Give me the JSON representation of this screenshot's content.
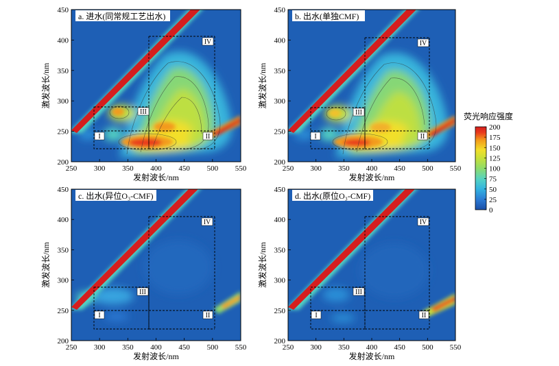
{
  "chart_data": [
    {
      "type": "heatmap",
      "panel_label": "a. 进水(同常规工艺出水)",
      "xlabel": "发射波长/nm",
      "ylabel": "激发波长/nm",
      "xlim": [
        250,
        550
      ],
      "ylim": [
        200,
        450
      ],
      "xticks": [
        "250",
        "300",
        "350",
        "400",
        "450",
        "500",
        "550"
      ],
      "yticks": [
        "200",
        "250",
        "300",
        "350",
        "400",
        "450"
      ],
      "regions": [
        "I",
        "II",
        "III",
        "IV"
      ],
      "scatter_line_intensity": 200,
      "peaks": [
        {
          "em": 345,
          "ex": 235,
          "intensity": 200
        },
        {
          "em": 330,
          "ex": 278,
          "intensity": 175
        },
        {
          "em": 410,
          "ex": 245,
          "intensity": 175
        },
        {
          "em": 425,
          "ex": 300,
          "intensity": 120
        },
        {
          "em": 430,
          "ex": 340,
          "intensity": 90
        },
        {
          "em": 525,
          "ex": 260,
          "intensity": 190
        }
      ]
    },
    {
      "type": "heatmap",
      "panel_label": "b. 出水(单独CMF)",
      "xlabel": "发射波长/nm",
      "ylabel": "激发波长/nm",
      "xlim": [
        250,
        550
      ],
      "ylim": [
        200,
        450
      ],
      "xticks": [
        "250",
        "300",
        "350",
        "400",
        "450",
        "500",
        "550"
      ],
      "yticks": [
        "200",
        "250",
        "300",
        "350",
        "400",
        "450"
      ],
      "regions": [
        "I",
        "II",
        "III",
        "IV"
      ],
      "scatter_line_intensity": 200,
      "peaks": [
        {
          "em": 340,
          "ex": 235,
          "intensity": 200
        },
        {
          "em": 330,
          "ex": 278,
          "intensity": 160
        },
        {
          "em": 410,
          "ex": 245,
          "intensity": 165
        },
        {
          "em": 425,
          "ex": 300,
          "intensity": 115
        },
        {
          "em": 430,
          "ex": 340,
          "intensity": 80
        },
        {
          "em": 525,
          "ex": 260,
          "intensity": 185
        }
      ]
    },
    {
      "type": "heatmap",
      "panel_label": "c. 出水(异位O₃-CMF)",
      "xlabel": "发射波长/nm",
      "ylabel": "激发波长/nm",
      "xlim": [
        250,
        550
      ],
      "ylim": [
        200,
        450
      ],
      "xticks": [
        "250",
        "300",
        "350",
        "400",
        "450",
        "500",
        "550"
      ],
      "yticks": [
        "200",
        "250",
        "300",
        "350",
        "400",
        "450"
      ],
      "regions": [
        "I",
        "II",
        "III",
        "IV"
      ],
      "scatter_line_intensity": 200,
      "peaks": [
        {
          "em": 305,
          "ex": 272,
          "intensity": 70
        },
        {
          "em": 335,
          "ex": 235,
          "intensity": 35
        },
        {
          "em": 540,
          "ex": 275,
          "intensity": 120
        }
      ]
    },
    {
      "type": "heatmap",
      "panel_label": "d. 出水(原位O₃-CMF)",
      "xlabel": "发射波长/nm",
      "ylabel": "激发波长/nm",
      "xlim": [
        250,
        550
      ],
      "ylim": [
        200,
        450
      ],
      "xticks": [
        "250",
        "300",
        "350",
        "400",
        "450",
        "500",
        "550"
      ],
      "yticks": [
        "200",
        "250",
        "300",
        "350",
        "400",
        "450"
      ],
      "regions": [
        "I",
        "II",
        "III",
        "IV"
      ],
      "scatter_line_intensity": 200,
      "peaks": [
        {
          "em": 330,
          "ex": 277,
          "intensity": 40
        },
        {
          "em": 345,
          "ex": 235,
          "intensity": 40
        },
        {
          "em": 535,
          "ex": 270,
          "intensity": 140
        }
      ]
    }
  ],
  "colorbar": {
    "title": "荧光响应强度",
    "min": 0,
    "max": 200,
    "ticks": [
      "0",
      "25",
      "50",
      "75",
      "100",
      "125",
      "150",
      "175",
      "200"
    ],
    "colors": [
      "#1b4fa6",
      "#2b7ad4",
      "#33b3e0",
      "#55d3c2",
      "#8fdc6a",
      "#c7e03a",
      "#f2df2a",
      "#f39a1a",
      "#e93a1c",
      "#d51e1e"
    ]
  }
}
